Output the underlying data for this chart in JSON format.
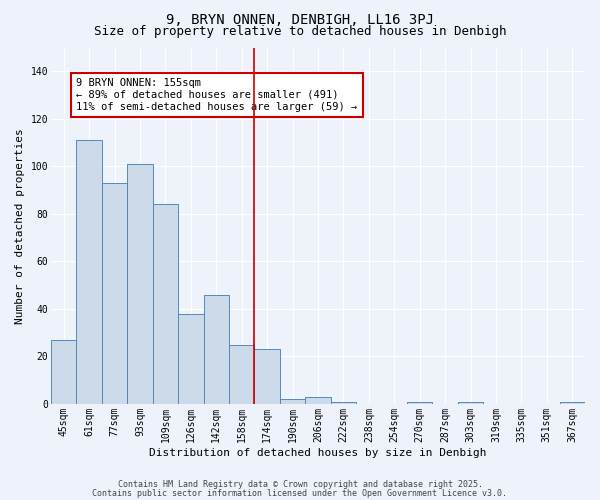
{
  "title": "9, BRYN ONNEN, DENBIGH, LL16 3PJ",
  "subtitle": "Size of property relative to detached houses in Denbigh",
  "xlabel": "Distribution of detached houses by size in Denbigh",
  "ylabel": "Number of detached properties",
  "bar_labels": [
    "45sqm",
    "61sqm",
    "77sqm",
    "93sqm",
    "109sqm",
    "126sqm",
    "142sqm",
    "158sqm",
    "174sqm",
    "190sqm",
    "206sqm",
    "222sqm",
    "238sqm",
    "254sqm",
    "270sqm",
    "287sqm",
    "303sqm",
    "319sqm",
    "335sqm",
    "351sqm",
    "367sqm"
  ],
  "bar_values": [
    27,
    111,
    93,
    101,
    84,
    38,
    46,
    25,
    23,
    2,
    3,
    1,
    0,
    0,
    1,
    0,
    1,
    0,
    0,
    0,
    1
  ],
  "bar_color": "#ccdaea",
  "bar_edge_color": "#5588bb",
  "background_color": "#eef2fb",
  "grid_color": "#ffffff",
  "vline_x_index": 7.5,
  "vline_color": "#cc0000",
  "annotation_text": "9 BRYN ONNEN: 155sqm\n← 89% of detached houses are smaller (491)\n11% of semi-detached houses are larger (59) →",
  "annotation_box_color": "#cc0000",
  "ylim": [
    0,
    150
  ],
  "yticks": [
    0,
    20,
    40,
    60,
    80,
    100,
    120,
    140
  ],
  "footer_line1": "Contains HM Land Registry data © Crown copyright and database right 2025.",
  "footer_line2": "Contains public sector information licensed under the Open Government Licence v3.0.",
  "title_fontsize": 10,
  "subtitle_fontsize": 9,
  "axis_label_fontsize": 8,
  "tick_fontsize": 7,
  "annotation_fontsize": 7.5,
  "footer_fontsize": 6
}
